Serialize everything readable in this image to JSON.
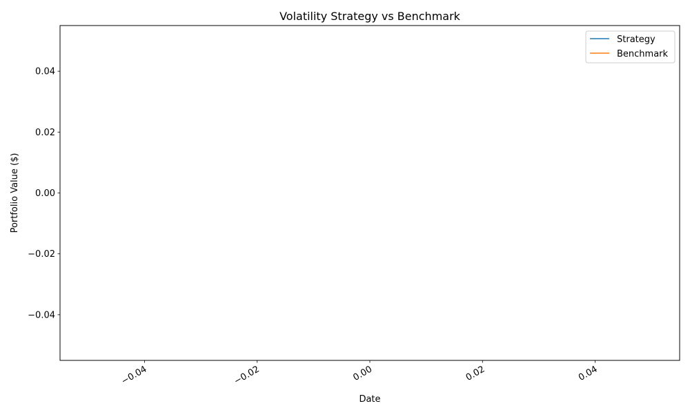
{
  "chart_data": {
    "type": "line",
    "title": "Volatility Strategy vs Benchmark",
    "xlabel": "Date",
    "ylabel": "Portfolio Value ($)",
    "xlim": [
      -0.055,
      0.055
    ],
    "ylim": [
      -0.055,
      0.055
    ],
    "x_ticks": [
      -0.04,
      -0.02,
      0.0,
      0.02,
      0.04
    ],
    "x_tick_labels": [
      "−0.04",
      "−0.02",
      "0.00",
      "0.02",
      "0.04"
    ],
    "y_ticks": [
      -0.04,
      -0.02,
      0.0,
      0.02,
      0.04
    ],
    "y_tick_labels": [
      "−0.04",
      "−0.02",
      "0.00",
      "0.02",
      "0.04"
    ],
    "grid": false,
    "legend_position": "top-right",
    "series": [
      {
        "name": "Strategy",
        "color": "#1f77b4",
        "x": [],
        "y": []
      },
      {
        "name": "Benchmark",
        "color": "#ff7f0e",
        "x": [],
        "y": []
      }
    ]
  }
}
